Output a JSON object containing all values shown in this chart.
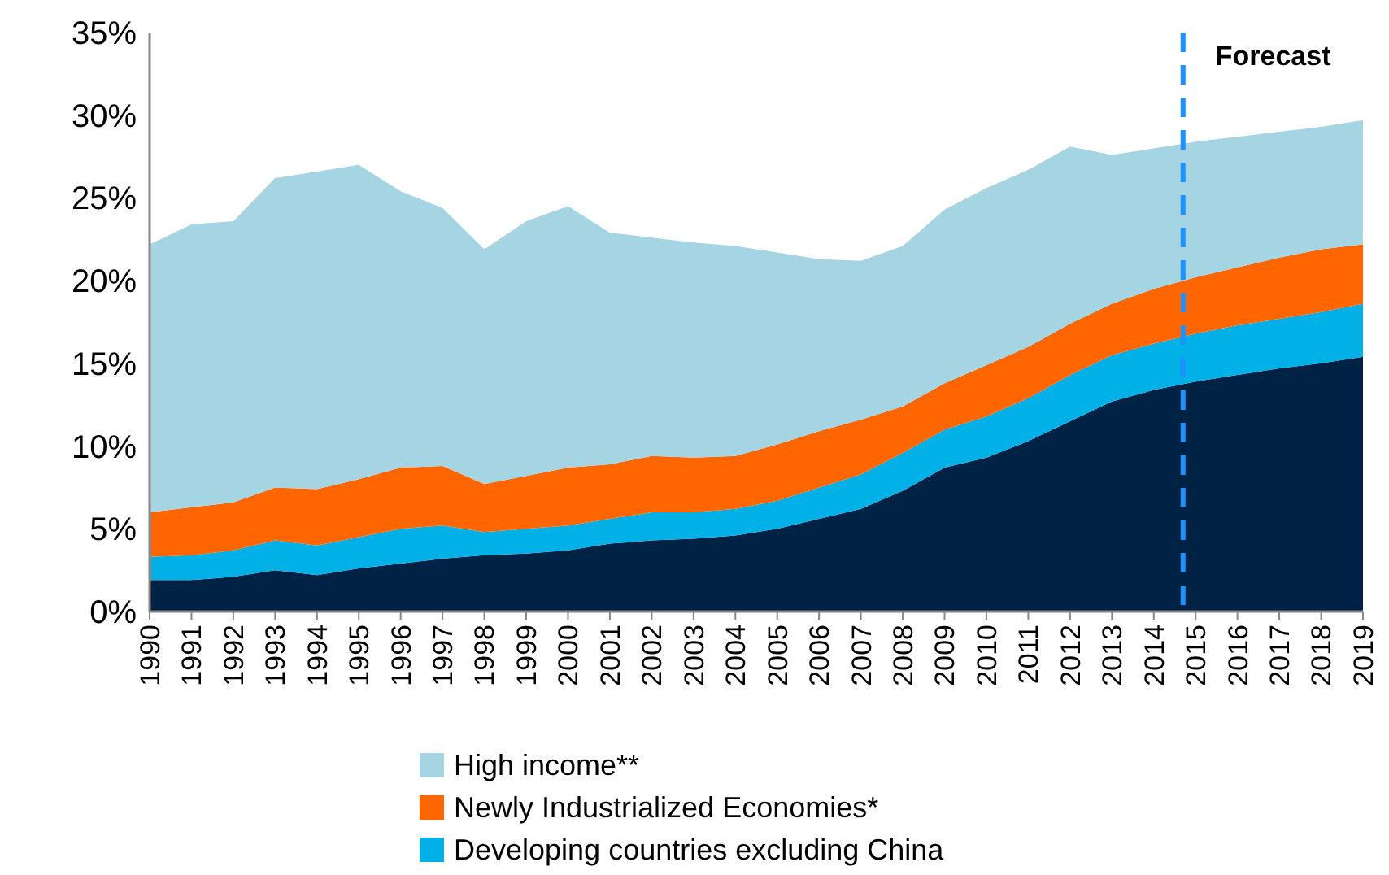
{
  "chart_data": {
    "type": "area",
    "stacked": true,
    "x": [
      1990,
      1991,
      1992,
      1993,
      1994,
      1995,
      1996,
      1997,
      1998,
      1999,
      2000,
      2001,
      2002,
      2003,
      2004,
      2005,
      2006,
      2007,
      2008,
      2009,
      2010,
      2011,
      2012,
      2013,
      2014,
      2015,
      2016,
      2017,
      2018,
      2019
    ],
    "series": [
      {
        "color": "#002244",
        "values": [
          1.9,
          1.9,
          2.1,
          2.5,
          2.2,
          2.6,
          2.9,
          3.2,
          3.4,
          3.5,
          3.7,
          4.1,
          4.3,
          4.4,
          4.6,
          5.0,
          5.6,
          6.2,
          7.3,
          8.7,
          9.3,
          10.3,
          11.5,
          12.7,
          13.4,
          13.9,
          14.3,
          14.7,
          15.0,
          15.4
        ]
      },
      {
        "name": "Developing countries excluding China",
        "color": "#00b0e6",
        "values": [
          1.4,
          1.5,
          1.6,
          1.8,
          1.8,
          1.9,
          2.1,
          2.0,
          1.4,
          1.5,
          1.5,
          1.5,
          1.7,
          1.6,
          1.6,
          1.7,
          1.9,
          2.1,
          2.3,
          2.3,
          2.5,
          2.6,
          2.8,
          2.8,
          2.8,
          2.9,
          3.0,
          3.0,
          3.1,
          3.2
        ]
      },
      {
        "name": "Newly Industrialized Economies*",
        "color": "#ff6600",
        "values": [
          2.7,
          2.9,
          2.9,
          3.2,
          3.4,
          3.5,
          3.7,
          3.6,
          2.9,
          3.2,
          3.5,
          3.3,
          3.4,
          3.3,
          3.2,
          3.4,
          3.4,
          3.3,
          2.8,
          2.8,
          3.1,
          3.1,
          3.1,
          3.1,
          3.3,
          3.4,
          3.5,
          3.7,
          3.8,
          3.6
        ]
      },
      {
        "name": "High income**",
        "color": "#a5d5e2",
        "values": [
          16.2,
          17.1,
          17.0,
          18.7,
          19.2,
          19.0,
          16.7,
          15.6,
          14.2,
          15.4,
          15.8,
          14.0,
          13.2,
          13.0,
          12.7,
          11.6,
          10.4,
          9.6,
          9.7,
          10.5,
          10.7,
          10.7,
          10.7,
          9.0,
          8.5,
          8.2,
          7.9,
          7.6,
          7.4,
          7.5
        ]
      }
    ],
    "xlim": [
      1990,
      2019
    ],
    "xticks": [
      1990,
      1991,
      1992,
      1993,
      1994,
      1995,
      1996,
      1997,
      1998,
      1999,
      2000,
      2001,
      2002,
      2003,
      2004,
      2005,
      2006,
      2007,
      2008,
      2009,
      2010,
      2011,
      2012,
      2013,
      2014,
      2015,
      2016,
      2017,
      2018,
      2019
    ],
    "ylim": [
      0,
      35
    ],
    "yticks": [
      {
        "value": 0,
        "label": "0%"
      },
      {
        "value": 5,
        "label": "5%"
      },
      {
        "value": 10,
        "label": "10%"
      },
      {
        "value": 15,
        "label": "15%"
      },
      {
        "value": 20,
        "label": "20%"
      },
      {
        "value": 25,
        "label": "25%"
      },
      {
        "value": 30,
        "label": "30%"
      },
      {
        "value": 35,
        "label": "35%"
      }
    ],
    "ref_lines": [
      {
        "axis": "x",
        "value": 2014.7,
        "label": "Forecast",
        "color": "#1e90ff",
        "line_style": "dashed"
      }
    ],
    "grid": false,
    "legend": "bottom"
  }
}
